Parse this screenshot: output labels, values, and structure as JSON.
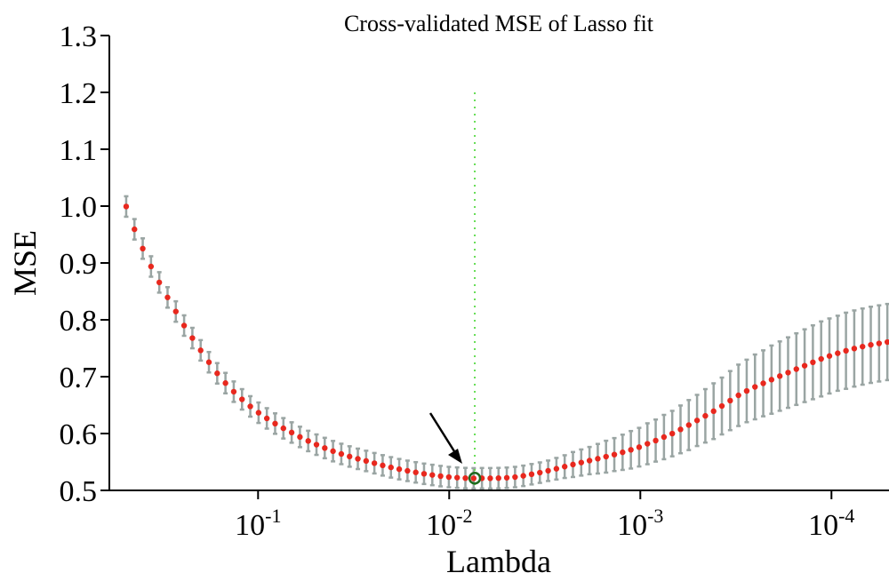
{
  "chart_data": {
    "type": "scatter",
    "title": "Cross-validated MSE of Lasso fit",
    "xlabel": "Lambda",
    "ylabel": "MSE",
    "x_scale": "log",
    "x_reversed": true,
    "xlim": [
      5e-05,
      0.6
    ],
    "ylim": [
      0.5,
      1.3
    ],
    "yticks": [
      "0.5",
      "0.6",
      "0.7",
      "0.8",
      "0.9",
      "1.0",
      "1.1",
      "1.2",
      "1.3"
    ],
    "xticks": [
      {
        "value": 0.1,
        "base": "10",
        "exp": "-1"
      },
      {
        "value": 0.01,
        "base": "10",
        "exp": "-2"
      },
      {
        "value": 0.001,
        "base": "10",
        "exp": "-3"
      },
      {
        "value": 0.0001,
        "base": "10",
        "exp": "-4"
      }
    ],
    "grid": false,
    "lambda_max": 0.4898,
    "lambda_min": 5.1e-05,
    "mse": [
      0.9993,
      0.9592,
      0.9253,
      0.8938,
      0.8658,
      0.8394,
      0.8146,
      0.7899,
      0.7679,
      0.7463,
      0.7254,
      0.7059,
      0.6887,
      0.6736,
      0.6601,
      0.6477,
      0.6366,
      0.6266,
      0.6175,
      0.6092,
      0.6018,
      0.594,
      0.5869,
      0.5804,
      0.5745,
      0.569,
      0.5641,
      0.5596,
      0.5555,
      0.5518,
      0.5478,
      0.544,
      0.5405,
      0.5373,
      0.5344,
      0.5317,
      0.5292,
      0.5271,
      0.5251,
      0.5234,
      0.5224,
      0.5216,
      0.5212,
      0.5214,
      0.5213,
      0.5216,
      0.5222,
      0.5234,
      0.5256,
      0.5284,
      0.5312,
      0.5345,
      0.5381,
      0.5418,
      0.5455,
      0.549,
      0.5524,
      0.5557,
      0.5593,
      0.563,
      0.567,
      0.5714,
      0.576,
      0.582,
      0.5876,
      0.5938,
      0.5999,
      0.6073,
      0.6149,
      0.623,
      0.6311,
      0.6393,
      0.6484,
      0.6579,
      0.6672,
      0.6749,
      0.682,
      0.6883,
      0.6948,
      0.701,
      0.7072,
      0.7133,
      0.7193,
      0.7253,
      0.7312,
      0.7364,
      0.7412,
      0.7456,
      0.7495,
      0.7529,
      0.756,
      0.7585,
      0.7609
    ],
    "error_half": [
      0.018,
      0.018,
      0.018,
      0.018,
      0.018,
      0.018,
      0.018,
      0.018,
      0.018,
      0.018,
      0.018,
      0.018,
      0.018,
      0.018,
      0.018,
      0.018,
      0.018,
      0.018,
      0.018,
      0.018,
      0.018,
      0.018,
      0.018,
      0.018,
      0.018,
      0.018,
      0.018,
      0.018,
      0.018,
      0.018,
      0.018,
      0.018,
      0.018,
      0.018,
      0.018,
      0.018,
      0.018,
      0.018,
      0.018,
      0.018,
      0.018,
      0.018,
      0.018,
      0.018,
      0.018,
      0.018,
      0.018,
      0.018,
      0.018,
      0.018,
      0.018,
      0.018,
      0.019,
      0.02,
      0.022,
      0.023,
      0.024,
      0.026,
      0.028,
      0.029,
      0.031,
      0.033,
      0.034,
      0.036,
      0.037,
      0.039,
      0.04,
      0.042,
      0.044,
      0.045,
      0.047,
      0.049,
      0.05,
      0.052,
      0.054,
      0.055,
      0.057,
      0.058,
      0.06,
      0.061,
      0.062,
      0.063,
      0.064,
      0.065,
      0.066,
      0.066,
      0.066,
      0.067,
      0.067,
      0.067,
      0.067,
      0.067,
      0.067
    ],
    "min_index": 43,
    "selected_lambda": 0.00735,
    "colors": {
      "points": "#e8281e",
      "errorbars": "#9aa5a3",
      "vline": "#66dd55",
      "min_marker_edge": "#1f6a1f",
      "axes": "#000000",
      "arrow": "#000000"
    }
  }
}
